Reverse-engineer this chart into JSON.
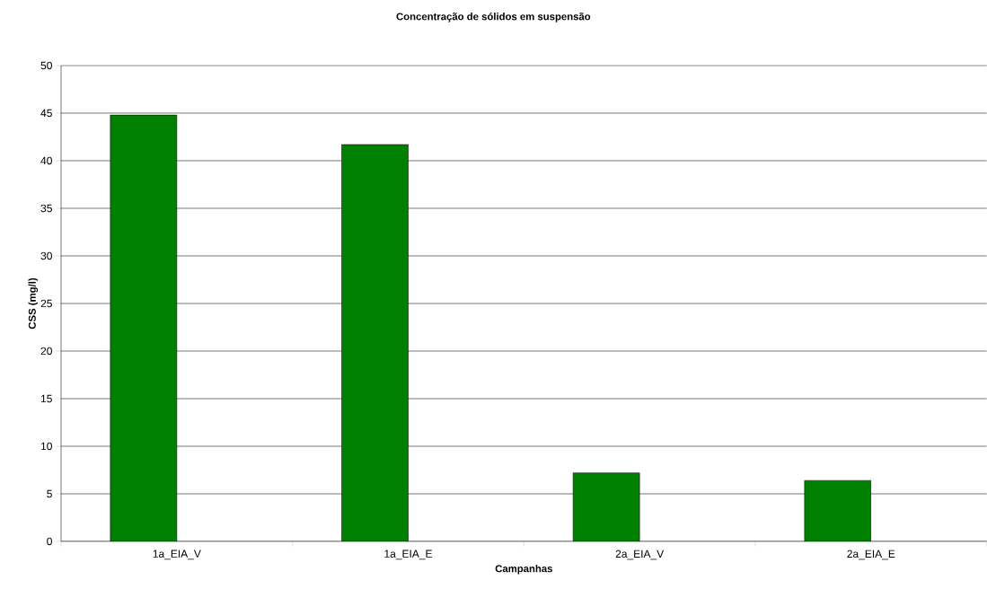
{
  "chart_data": {
    "type": "bar",
    "title": "Concentração de sólidos em suspensão",
    "xlabel": "Campanhas",
    "ylabel": "CSS (mg/l)",
    "categories": [
      "1a_EIA_V",
      "1a_EIA_E",
      "2a_EIA_V",
      "2a_EIA_E"
    ],
    "values": [
      44.8,
      41.7,
      7.2,
      6.4
    ],
    "color": "#008000",
    "ylim": [
      0,
      50
    ],
    "yticks": [
      0,
      5,
      10,
      15,
      20,
      25,
      30,
      35,
      40,
      45,
      50
    ],
    "grid": "y"
  }
}
